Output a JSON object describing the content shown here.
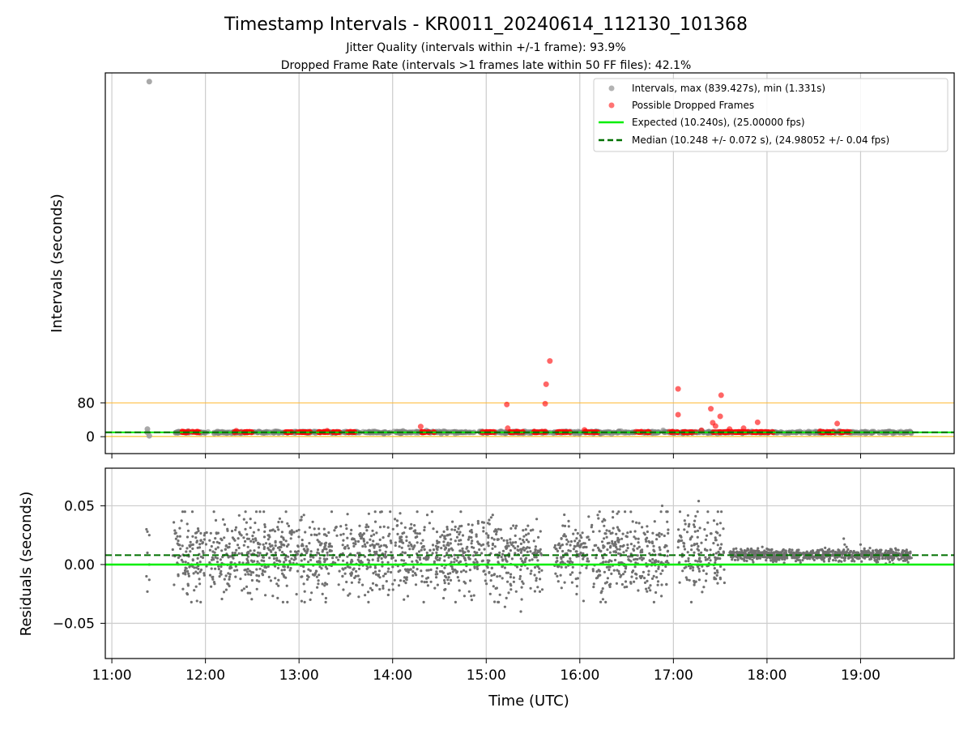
{
  "chart_data": [
    {
      "type": "scatter",
      "title": "Timestamp Intervals - KR0011_20240614_112130_101368",
      "subtitle_lines": [
        "Jitter Quality (intervals within +/-1 frame): 93.9%",
        "Dropped Frame Rate (intervals >1 frames late within 50 FF files): 42.1%"
      ],
      "ylabel": "Intervals (seconds)",
      "ylim": [
        -40,
        860
      ],
      "yticks": [
        0,
        80
      ],
      "ytick_labels": [
        "0",
        "80"
      ],
      "xlim_hours": [
        10.93,
        20.0
      ],
      "grid": "vertical",
      "threshold_lines": [
        {
          "value": 0.5,
          "color": "#f0b800"
        },
        {
          "value": 80,
          "color": "#ffb833"
        }
      ],
      "legend": {
        "placement": "top-right",
        "entries": [
          {
            "label": "Intervals, max (839.427s), min (1.331s)",
            "kind": "marker",
            "color": "#a0a0a0"
          },
          {
            "label": "Possible Dropped Frames",
            "kind": "marker",
            "color": "#ff5050"
          },
          {
            "label": "Expected (10.240s), (25.00000 fps)",
            "kind": "line",
            "color": "#00ee00"
          },
          {
            "label": "Median (10.248 +/- 0.072 s), (24.98052 +/- 0.04 fps)",
            "kind": "dashed",
            "color": "#007000"
          }
        ]
      },
      "series": [
        {
          "name": "Intervals, max (839.427s), min (1.331s)",
          "color": "#808080",
          "band": {
            "x_start_hours": 11.65,
            "x_end_hours": 19.55,
            "y": 10.24
          },
          "outliers": [
            [
              11.4,
              839.4
            ],
            [
              11.38,
              18
            ],
            [
              11.4,
              2
            ],
            [
              11.38,
              10
            ]
          ]
        },
        {
          "name": "Possible Dropped Frames",
          "color": "#ff0000",
          "clusters_hours": [
            [
              11.72,
              11.95
            ],
            [
              12.3,
              12.5
            ],
            [
              12.85,
              13.15
            ],
            [
              13.2,
              13.45
            ],
            [
              13.5,
              13.6
            ],
            [
              14.3,
              14.45
            ],
            [
              14.95,
              15.1
            ],
            [
              15.25,
              15.4
            ],
            [
              15.5,
              15.65
            ],
            [
              15.75,
              15.9
            ],
            [
              16.05,
              16.2
            ],
            [
              16.6,
              16.75
            ],
            [
              16.95,
              17.05
            ],
            [
              17.1,
              17.25
            ],
            [
              17.4,
              17.6
            ],
            [
              17.62,
              18.1
            ],
            [
              18.55,
              18.9
            ]
          ],
          "points": [
            [
              15.68,
              179
            ],
            [
              15.64,
              124
            ],
            [
              15.63,
              78
            ],
            [
              15.22,
              76
            ],
            [
              15.23,
              20
            ],
            [
              17.05,
              113
            ],
            [
              17.05,
              52
            ],
            [
              17.51,
              98
            ],
            [
              17.5,
              48
            ],
            [
              17.4,
              66
            ],
            [
              17.42,
              33
            ],
            [
              17.45,
              25
            ],
            [
              17.9,
              34
            ],
            [
              17.6,
              18
            ],
            [
              17.75,
              20
            ],
            [
              18.75,
              31
            ],
            [
              14.3,
              24
            ],
            [
              12.33,
              14
            ],
            [
              13.3,
              14
            ],
            [
              16.05,
              16
            ],
            [
              17.3,
              15
            ]
          ]
        },
        {
          "name": "Expected (10.240s), (25.00000 fps)",
          "color": "#00ee00",
          "y": 10.24
        },
        {
          "name": "Median (10.248 +/- 0.072 s), (24.98052 +/- 0.04 fps)",
          "color": "#007000",
          "y": 10.248
        }
      ]
    },
    {
      "type": "scatter",
      "xlabel": "Time (UTC)",
      "ylabel": "Residuals (seconds)",
      "ylim": [
        -0.08,
        0.082
      ],
      "yticks": [
        -0.05,
        0.0,
        0.05
      ],
      "ytick_labels": [
        "−0.05",
        "0.00",
        "0.05"
      ],
      "xlim_hours": [
        10.93,
        20.0
      ],
      "xticks_hours": [
        11,
        12,
        13,
        14,
        15,
        16,
        17,
        18,
        19
      ],
      "xtick_labels": [
        "11:00",
        "12:00",
        "13:00",
        "14:00",
        "15:00",
        "16:00",
        "17:00",
        "18:00",
        "19:00"
      ],
      "grid": "both",
      "series": [
        {
          "name": "Residuals",
          "color": "#707070",
          "segments": [
            {
              "x_start_hours": 11.65,
              "x_end_hours": 15.6,
              "mean": 0.008,
              "spread": 0.017,
              "count": 1350
            },
            {
              "x_start_hours": 15.72,
              "x_end_hours": 16.95,
              "mean": 0.008,
              "spread": 0.017,
              "count": 420
            },
            {
              "x_start_hours": 17.05,
              "x_end_hours": 17.55,
              "mean": 0.01,
              "spread": 0.017,
              "count": 160
            },
            {
              "x_start_hours": 17.6,
              "x_end_hours": 19.55,
              "mean": 0.008,
              "spread": 0.0025,
              "count": 800
            }
          ],
          "extra_points": [
            [
              11.37,
              0.03
            ],
            [
              11.38,
              0.028
            ],
            [
              11.4,
              0.025
            ],
            [
              11.38,
              0.01
            ],
            [
              11.4,
              0.0
            ],
            [
              11.37,
              -0.01
            ],
            [
              11.4,
              -0.013
            ],
            [
              11.38,
              -0.023
            ],
            [
              17.27,
              0.054
            ],
            [
              16.88,
              0.05
            ],
            [
              15.37,
              -0.04
            ],
            [
              15.2,
              -0.036
            ],
            [
              13.06,
              -0.032
            ],
            [
              16.04,
              -0.031
            ],
            [
              11.91,
              -0.031
            ],
            [
              18.82,
              0.022
            ],
            [
              18.83,
              0.017
            ],
            [
              19.0,
              0.017
            ],
            [
              18.85,
              0.015
            ],
            [
              19.1,
              0.014
            ],
            [
              17.95,
              0.015
            ]
          ]
        },
        {
          "name": "Expected",
          "color": "#00ee00",
          "y": 0.0
        },
        {
          "name": "Median",
          "color": "#007000",
          "y": 0.008
        }
      ]
    }
  ]
}
